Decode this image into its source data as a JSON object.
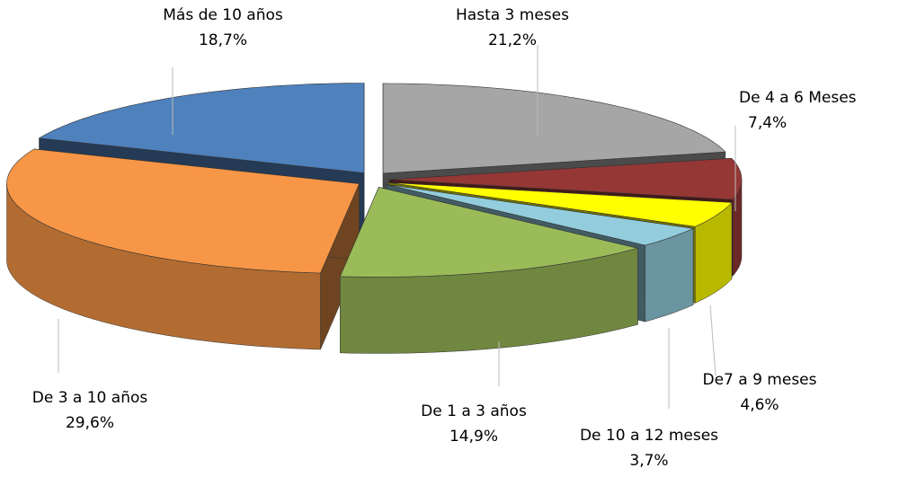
{
  "chart_data": {
    "type": "pie",
    "categories": [
      "Hasta 3 meses",
      "De 4 a 6 Meses",
      "De7 a 9 meses",
      "De 10 a 12 meses",
      "De 1 a 3 años",
      "De 3 a 10 años",
      "Más de 10 años"
    ],
    "values": [
      21.2,
      7.4,
      4.6,
      3.7,
      14.9,
      29.6,
      18.7
    ],
    "value_labels": [
      "21,2%",
      "7,4%",
      "4,6%",
      "3,7%",
      "14,9%",
      "29,6%",
      "18,7%"
    ],
    "colors": [
      "#a6a6a6",
      "#953735",
      "#ffff00",
      "#93cddd",
      "#9bbb59",
      "#f79646",
      "#4f81bd"
    ]
  }
}
